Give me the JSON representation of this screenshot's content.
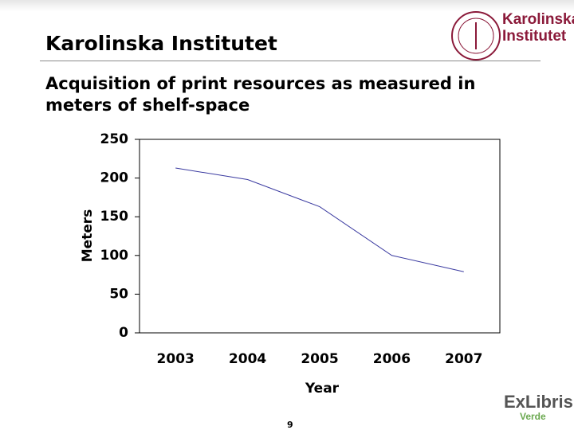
{
  "header": {
    "title": "Karolinska Institutet",
    "logo_line1": "Karolinska",
    "logo_line2": "Institutet"
  },
  "footer": {
    "page_number": "9",
    "logo": "ExLibris",
    "logo_sub": "Verde"
  },
  "chart_data": {
    "type": "line",
    "title": "Acquisition of print resources as measured in meters of shelf-space",
    "x_label": "Year",
    "y_label": "Meters",
    "categories": [
      "2003",
      "2004",
      "2005",
      "2006",
      "2007"
    ],
    "values": [
      213,
      198,
      163,
      100,
      79
    ],
    "color": "#3a3aa0",
    "ylim": [
      0,
      250
    ],
    "yticks": [
      0,
      50,
      100,
      150,
      200,
      250
    ],
    "grid": false
  }
}
